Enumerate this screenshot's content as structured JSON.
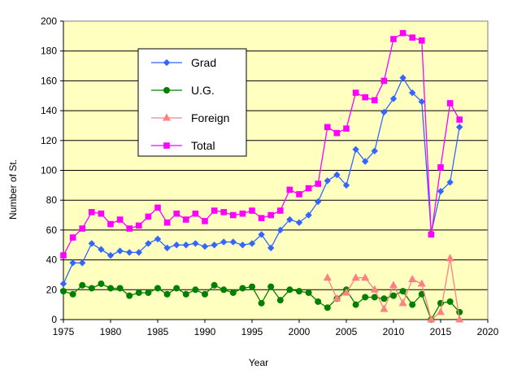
{
  "chart_data": {
    "type": "line",
    "xlabel": "Year",
    "ylabel": "Number of St.",
    "xlim": [
      1975,
      2020
    ],
    "ylim": [
      0,
      200
    ],
    "x_ticks": [
      "1975",
      "1980",
      "1985",
      "1990",
      "1995",
      "2000",
      "2005",
      "2010",
      "2015",
      "2020"
    ],
    "y_ticks": [
      "0",
      "20",
      "40",
      "60",
      "80",
      "100",
      "120",
      "140",
      "160",
      "180",
      "200"
    ],
    "grid": "horizontal",
    "legend_position": "upper-left",
    "colors": {
      "plot_background": "#ffffc0",
      "grid": "#000000"
    },
    "series": [
      {
        "name": "Grad",
        "color": "#3366ff",
        "marker": "diamond",
        "points": [
          [
            1975,
            24
          ],
          [
            1976,
            38
          ],
          [
            1977,
            38
          ],
          [
            1978,
            51
          ],
          [
            1979,
            47
          ],
          [
            1980,
            43
          ],
          [
            1981,
            46
          ],
          [
            1982,
            45
          ],
          [
            1983,
            45
          ],
          [
            1984,
            51
          ],
          [
            1985,
            54
          ],
          [
            1986,
            48
          ],
          [
            1987,
            50
          ],
          [
            1988,
            50
          ],
          [
            1989,
            51
          ],
          [
            1990,
            49
          ],
          [
            1991,
            50
          ],
          [
            1992,
            52
          ],
          [
            1993,
            52
          ],
          [
            1994,
            50
          ],
          [
            1995,
            51
          ],
          [
            1996,
            57
          ],
          [
            1997,
            48
          ],
          [
            1998,
            60
          ],
          [
            1999,
            67
          ],
          [
            2000,
            65
          ],
          [
            2001,
            70
          ],
          [
            2002,
            79
          ],
          [
            2003,
            93
          ],
          [
            2004,
            97
          ],
          [
            2005,
            90
          ],
          [
            2006,
            114
          ],
          [
            2007,
            106
          ],
          [
            2008,
            113
          ],
          [
            2009,
            139
          ],
          [
            2010,
            148
          ],
          [
            2011,
            162
          ],
          [
            2012,
            152
          ],
          [
            2013,
            146
          ],
          [
            2014,
            58
          ],
          [
            2015,
            86
          ],
          [
            2016,
            92
          ],
          [
            2017,
            129
          ]
        ]
      },
      {
        "name": "U.G.",
        "color": "#008000",
        "marker": "circle",
        "points": [
          [
            1975,
            19
          ],
          [
            1976,
            17
          ],
          [
            1977,
            23
          ],
          [
            1978,
            21
          ],
          [
            1979,
            24
          ],
          [
            1980,
            21
          ],
          [
            1981,
            21
          ],
          [
            1982,
            16
          ],
          [
            1983,
            18
          ],
          [
            1984,
            18
          ],
          [
            1985,
            21
          ],
          [
            1986,
            17
          ],
          [
            1987,
            21
          ],
          [
            1988,
            17
          ],
          [
            1989,
            20
          ],
          [
            1990,
            17
          ],
          [
            1991,
            23
          ],
          [
            1992,
            20
          ],
          [
            1993,
            18
          ],
          [
            1994,
            21
          ],
          [
            1995,
            22
          ],
          [
            1996,
            11
          ],
          [
            1997,
            22
          ],
          [
            1998,
            13
          ],
          [
            1999,
            20
          ],
          [
            2000,
            19
          ],
          [
            2001,
            18
          ],
          [
            2002,
            12
          ],
          [
            2003,
            8
          ],
          [
            2004,
            14
          ],
          [
            2005,
            20
          ],
          [
            2006,
            10
          ],
          [
            2007,
            15
          ],
          [
            2008,
            15
          ],
          [
            2009,
            14
          ],
          [
            2010,
            16
          ],
          [
            2011,
            19
          ],
          [
            2012,
            10
          ],
          [
            2013,
            17
          ],
          [
            2014,
            0
          ],
          [
            2015,
            11
          ],
          [
            2016,
            12
          ],
          [
            2017,
            5
          ]
        ]
      },
      {
        "name": "Foreign",
        "color": "#ff8080",
        "marker": "triangle",
        "points": [
          [
            2003,
            28
          ],
          [
            2004,
            14
          ],
          [
            2005,
            18
          ],
          [
            2006,
            28
          ],
          [
            2007,
            28
          ],
          [
            2008,
            20
          ],
          [
            2009,
            7
          ],
          [
            2010,
            23
          ],
          [
            2011,
            11
          ],
          [
            2012,
            27
          ],
          [
            2013,
            24
          ],
          [
            2014,
            0
          ],
          [
            2015,
            5
          ],
          [
            2016,
            41
          ],
          [
            2017,
            0
          ]
        ]
      },
      {
        "name": "Total",
        "color": "#ff00ff",
        "marker": "square",
        "points": [
          [
            1975,
            43
          ],
          [
            1976,
            55
          ],
          [
            1977,
            61
          ],
          [
            1978,
            72
          ],
          [
            1979,
            71
          ],
          [
            1980,
            64
          ],
          [
            1981,
            67
          ],
          [
            1982,
            61
          ],
          [
            1983,
            63
          ],
          [
            1984,
            69
          ],
          [
            1985,
            75
          ],
          [
            1986,
            65
          ],
          [
            1987,
            71
          ],
          [
            1988,
            67
          ],
          [
            1989,
            71
          ],
          [
            1990,
            66
          ],
          [
            1991,
            73
          ],
          [
            1992,
            72
          ],
          [
            1993,
            70
          ],
          [
            1994,
            71
          ],
          [
            1995,
            73
          ],
          [
            1996,
            68
          ],
          [
            1997,
            70
          ],
          [
            1998,
            73
          ],
          [
            1999,
            87
          ],
          [
            2000,
            84
          ],
          [
            2001,
            88
          ],
          [
            2002,
            91
          ],
          [
            2003,
            129
          ],
          [
            2004,
            125
          ],
          [
            2005,
            128
          ],
          [
            2006,
            152
          ],
          [
            2007,
            149
          ],
          [
            2008,
            147
          ],
          [
            2009,
            160
          ],
          [
            2010,
            188
          ],
          [
            2011,
            192
          ],
          [
            2012,
            189
          ],
          [
            2013,
            187
          ],
          [
            2014,
            57
          ],
          [
            2015,
            102
          ],
          [
            2016,
            145
          ],
          [
            2017,
            134
          ]
        ]
      }
    ]
  }
}
